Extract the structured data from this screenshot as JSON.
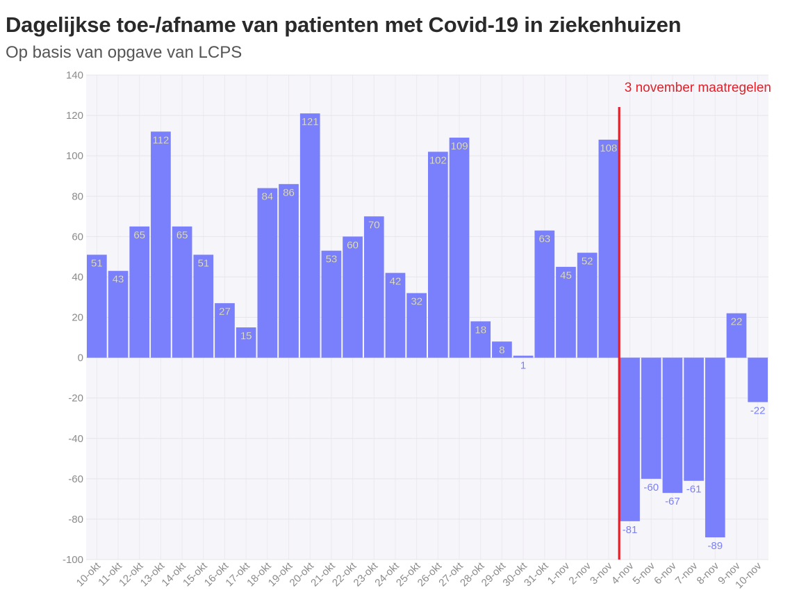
{
  "chart_data": {
    "type": "bar",
    "title": "Dagelijkse toe-/afname van patienten met Covid-19 in ziekenhuizen",
    "subtitle": "Op basis van opgave van LCPS",
    "xlabel": "",
    "ylabel": "",
    "ylim": [
      -100,
      140
    ],
    "yticks": [
      140,
      120,
      100,
      80,
      60,
      40,
      20,
      0,
      -20,
      -40,
      -60,
      -80,
      -100
    ],
    "grid": true,
    "categories": [
      "10-okt",
      "11-okt",
      "12-okt",
      "13-okt",
      "14-okt",
      "15-okt",
      "16-okt",
      "17-okt",
      "18-okt",
      "19-okt",
      "20-okt",
      "21-okt",
      "22-okt",
      "23-okt",
      "24-okt",
      "25-okt",
      "26-okt",
      "27-okt",
      "28-okt",
      "29-okt",
      "30-okt",
      "31-okt",
      "1-nov",
      "2-nov",
      "3-nov",
      "4-nov",
      "5-nov",
      "6-nov",
      "7-nov",
      "8-nov",
      "9-nov",
      "10-nov"
    ],
    "values": [
      51,
      43,
      65,
      112,
      65,
      51,
      27,
      15,
      84,
      86,
      121,
      53,
      60,
      70,
      42,
      32,
      102,
      109,
      18,
      8,
      1,
      63,
      45,
      52,
      108,
      -81,
      -60,
      -67,
      -61,
      -89,
      22,
      -22
    ],
    "bar_color": "#7a7ffb",
    "annotation": {
      "text": "3 november maatregelen",
      "color": "#e0202a",
      "position_category": "3-nov"
    }
  }
}
